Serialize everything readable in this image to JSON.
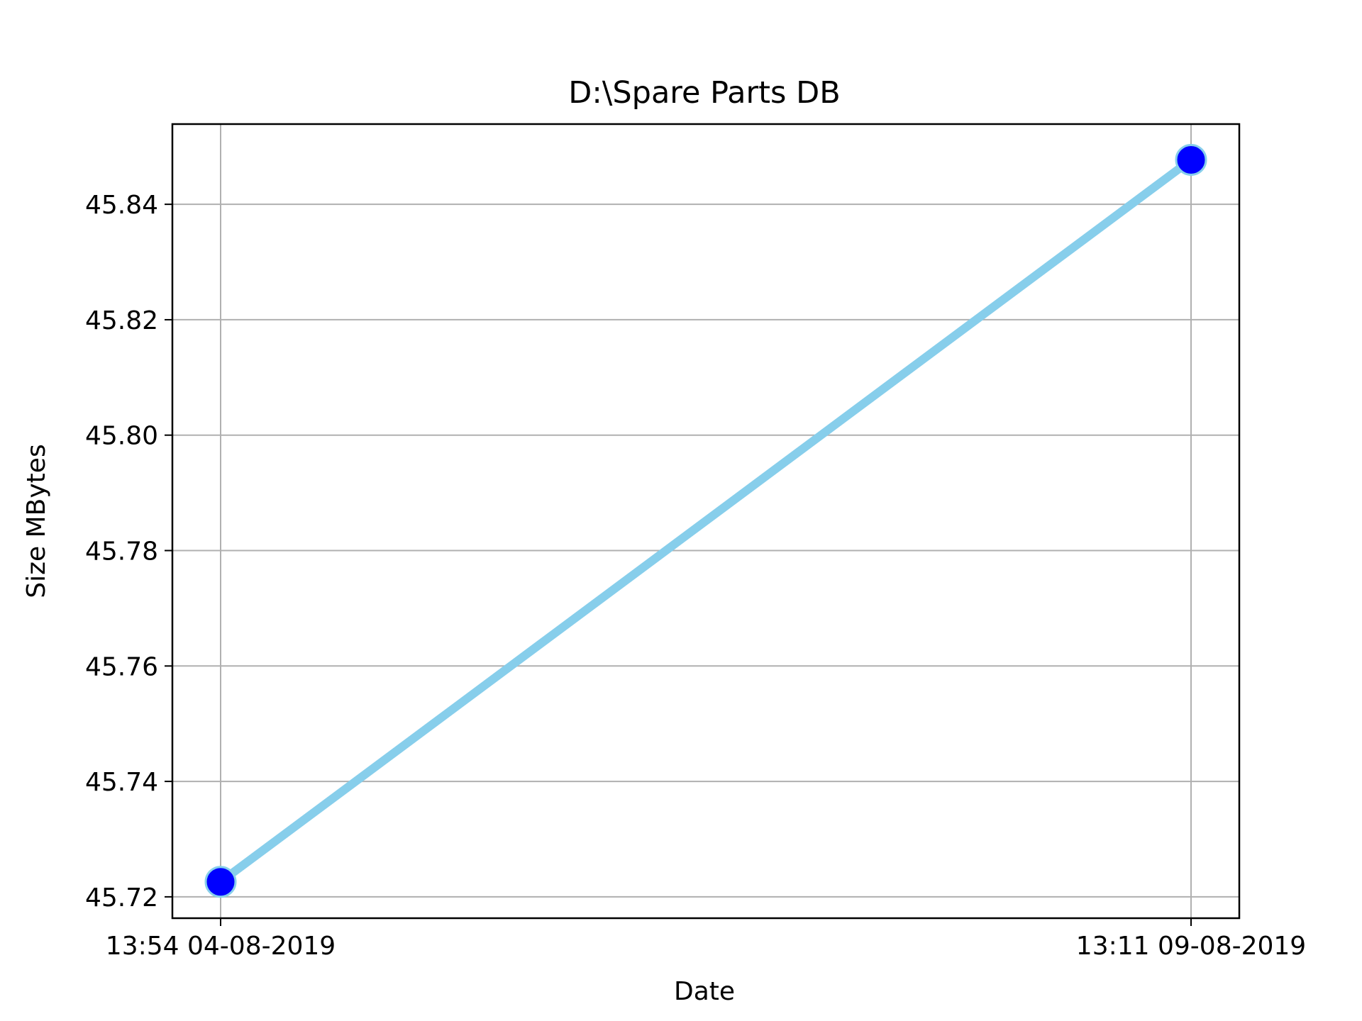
{
  "chart_data": {
    "type": "line",
    "title": "D:\\Spare Parts DB",
    "xlabel": "Date",
    "ylabel": "Size MBytes",
    "x_ticks": [
      "13:54 04-08-2019",
      "13:11 09-08-2019"
    ],
    "y_ticks": [
      "45.72",
      "45.74",
      "45.76",
      "45.78",
      "45.80",
      "45.82",
      "45.84"
    ],
    "y_tick_values": [
      45.72,
      45.74,
      45.76,
      45.78,
      45.8,
      45.82,
      45.84
    ],
    "ylim": [
      45.7163,
      45.8539
    ],
    "grid": true,
    "series": [
      {
        "x": [
          "13:54 04-08-2019",
          "13:11 09-08-2019"
        ],
        "values": [
          45.7226,
          45.8477
        ],
        "line_color": "#87ceeb",
        "marker_color": "#0000ff"
      }
    ]
  }
}
